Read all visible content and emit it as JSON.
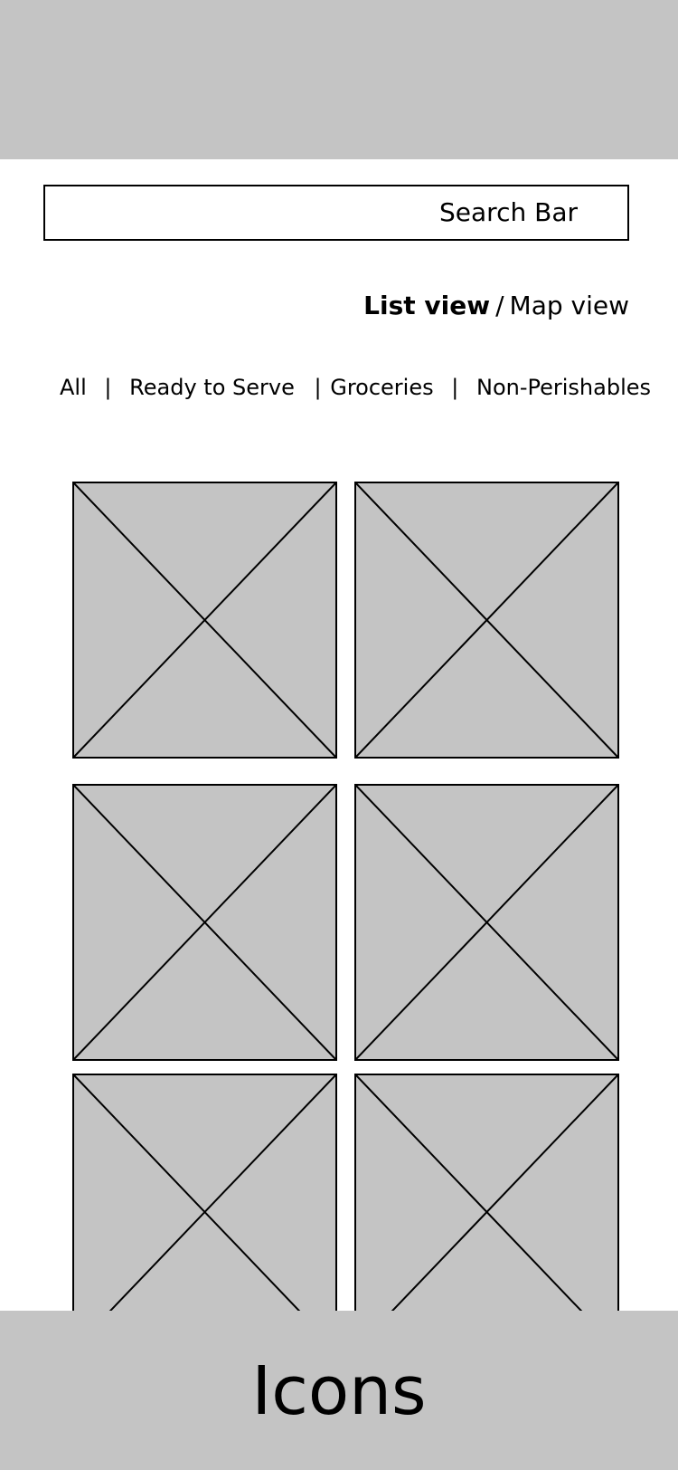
{
  "search": {
    "label": "Search Bar"
  },
  "view_toggle": {
    "list_label": "List view",
    "separator": "/",
    "map_label": "Map view"
  },
  "filters": {
    "items": [
      "All",
      "Ready to Serve",
      "Groceries",
      "Non-Perishables"
    ],
    "separator": "|"
  },
  "placeholders": {
    "count": 6,
    "icon": "image-placeholder-icon"
  },
  "bottom_bar": {
    "label": "Icons"
  },
  "colors": {
    "bar_gray": "#c4c4c4",
    "line": "#000000",
    "background": "#ffffff"
  }
}
